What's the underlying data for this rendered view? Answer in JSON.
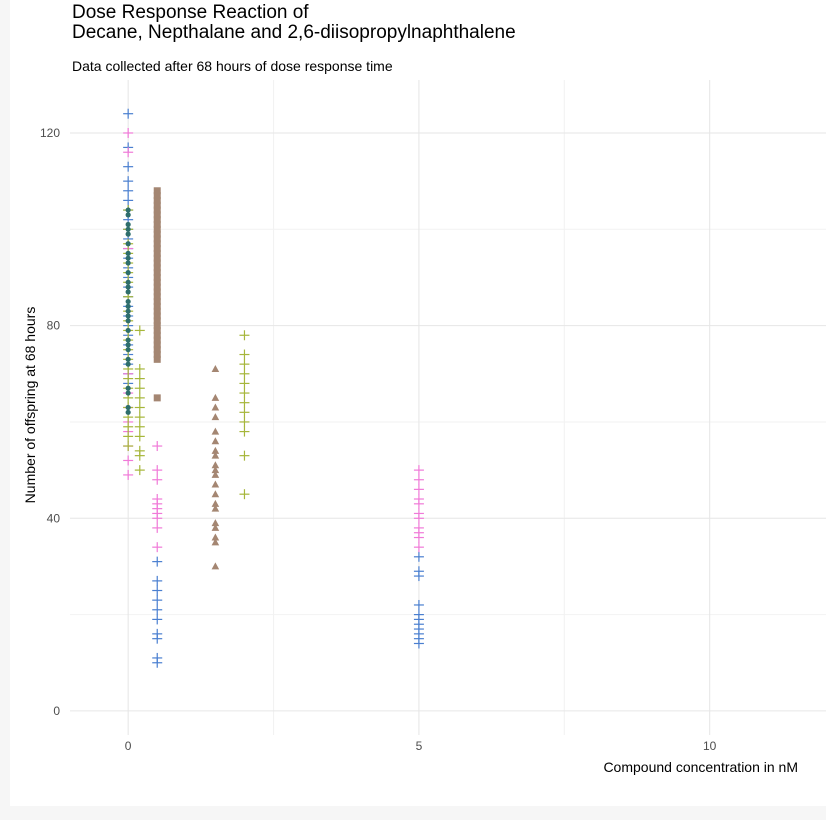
{
  "chart_data": {
    "type": "scatter",
    "title": "Dose Response Reaction of\nDecane, Nepthalane and 2,6-diisopropylnaphthalene",
    "subtitle": "Data collected after 68 hours of dose response time",
    "xlabel": "Compound concentration in nM",
    "ylabel": "Number of offspring at 68 hours",
    "xlim": [
      -1,
      12
    ],
    "ylim": [
      -5,
      131
    ],
    "x_ticks": [
      0,
      5,
      10
    ],
    "y_ticks": [
      0,
      40,
      80,
      120
    ],
    "grid": true,
    "series": [
      {
        "marker": "plus",
        "color": "#4a7fd0",
        "points": [
          [
            0,
            124
          ],
          [
            0,
            117
          ],
          [
            0,
            113
          ],
          [
            0,
            110
          ],
          [
            0,
            108
          ],
          [
            0,
            106
          ],
          [
            0,
            104
          ],
          [
            0,
            102
          ],
          [
            0,
            100
          ],
          [
            0,
            98
          ],
          [
            0,
            96
          ],
          [
            0,
            94
          ],
          [
            0,
            92
          ],
          [
            0,
            90
          ],
          [
            0,
            88
          ],
          [
            0,
            86
          ],
          [
            0,
            84
          ],
          [
            0,
            82
          ],
          [
            0,
            80
          ],
          [
            0,
            78
          ],
          [
            0,
            76
          ],
          [
            0,
            74
          ],
          [
            0,
            72
          ],
          [
            0,
            70
          ],
          [
            0,
            68
          ],
          [
            0.5,
            31
          ],
          [
            0.5,
            27
          ],
          [
            0.5,
            25
          ],
          [
            0.5,
            23
          ],
          [
            0.5,
            21
          ],
          [
            0.5,
            19
          ],
          [
            0.5,
            16
          ],
          [
            0.5,
            15
          ],
          [
            0.5,
            11
          ],
          [
            0.5,
            10
          ],
          [
            5,
            32
          ],
          [
            5,
            29
          ],
          [
            5,
            28
          ],
          [
            5,
            22
          ],
          [
            5,
            20
          ],
          [
            5,
            19
          ],
          [
            5,
            18
          ],
          [
            5,
            17
          ],
          [
            5,
            16
          ],
          [
            5,
            15
          ],
          [
            5,
            14
          ]
        ]
      },
      {
        "marker": "plus",
        "color": "#f07ad8",
        "points": [
          [
            0,
            120
          ],
          [
            0,
            116
          ],
          [
            0,
            96
          ],
          [
            0,
            70
          ],
          [
            0,
            66
          ],
          [
            0,
            63
          ],
          [
            0,
            60
          ],
          [
            0,
            58
          ],
          [
            0,
            55
          ],
          [
            0,
            52
          ],
          [
            0,
            49
          ],
          [
            0.5,
            55
          ],
          [
            0.5,
            50
          ],
          [
            0.5,
            48
          ],
          [
            0.5,
            44
          ],
          [
            0.5,
            43
          ],
          [
            0.5,
            42
          ],
          [
            0.5,
            41
          ],
          [
            0.5,
            40
          ],
          [
            0.5,
            38
          ],
          [
            0.5,
            34
          ],
          [
            5,
            50
          ],
          [
            5,
            48
          ],
          [
            5,
            46
          ],
          [
            5,
            44
          ],
          [
            5,
            43
          ],
          [
            5,
            41
          ],
          [
            5,
            40
          ],
          [
            5,
            38
          ],
          [
            5,
            37
          ],
          [
            5,
            36
          ],
          [
            5,
            34
          ]
        ]
      },
      {
        "marker": "plus",
        "color": "#a6b63a",
        "points": [
          [
            0,
            104
          ],
          [
            0,
            100
          ],
          [
            0,
            97
          ],
          [
            0,
            95
          ],
          [
            0,
            93
          ],
          [
            0,
            91
          ],
          [
            0,
            89
          ],
          [
            0,
            86
          ],
          [
            0,
            83
          ],
          [
            0,
            81
          ],
          [
            0,
            79
          ],
          [
            0,
            77
          ],
          [
            0,
            75
          ],
          [
            0,
            73
          ],
          [
            0,
            71
          ],
          [
            0,
            69
          ],
          [
            0,
            67
          ],
          [
            0,
            65
          ],
          [
            0,
            63
          ],
          [
            0,
            61
          ],
          [
            0,
            59
          ],
          [
            0,
            57
          ],
          [
            0,
            55
          ],
          [
            0.2,
            79
          ],
          [
            0.2,
            71
          ],
          [
            0.2,
            69
          ],
          [
            0.2,
            67
          ],
          [
            0.2,
            65
          ],
          [
            0.2,
            63
          ],
          [
            0.2,
            61
          ],
          [
            0.2,
            59
          ],
          [
            0.2,
            57
          ],
          [
            0.2,
            54
          ],
          [
            0.2,
            53
          ],
          [
            0.2,
            50
          ],
          [
            2,
            78
          ],
          [
            2,
            74
          ],
          [
            2,
            72
          ],
          [
            2,
            70
          ],
          [
            2,
            68
          ],
          [
            2,
            66
          ],
          [
            2,
            64
          ],
          [
            2,
            62
          ],
          [
            2,
            60
          ],
          [
            2,
            58
          ],
          [
            2,
            53
          ],
          [
            2,
            45
          ]
        ]
      },
      {
        "marker": "circle",
        "color": "#2e6e6c",
        "points": [
          [
            0,
            104
          ],
          [
            0,
            103
          ],
          [
            0,
            101
          ],
          [
            0,
            100
          ],
          [
            0,
            99
          ],
          [
            0,
            97
          ],
          [
            0,
            95
          ],
          [
            0,
            94
          ],
          [
            0,
            93
          ],
          [
            0,
            91
          ],
          [
            0,
            89
          ],
          [
            0,
            88
          ],
          [
            0,
            87
          ],
          [
            0,
            85
          ],
          [
            0,
            84
          ],
          [
            0,
            83
          ],
          [
            0,
            82
          ],
          [
            0,
            81
          ],
          [
            0,
            79
          ],
          [
            0,
            77
          ],
          [
            0,
            76
          ],
          [
            0,
            75
          ],
          [
            0,
            73
          ],
          [
            0,
            72
          ],
          [
            0,
            67
          ],
          [
            0,
            66
          ],
          [
            0,
            63
          ],
          [
            0,
            62
          ]
        ]
      },
      {
        "marker": "square",
        "color": "#a48672",
        "points": [
          [
            0.5,
            108
          ],
          [
            0.5,
            107
          ],
          [
            0.5,
            106
          ],
          [
            0.5,
            105
          ],
          [
            0.5,
            104
          ],
          [
            0.5,
            103
          ],
          [
            0.5,
            102
          ],
          [
            0.5,
            101
          ],
          [
            0.5,
            100
          ],
          [
            0.5,
            99
          ],
          [
            0.5,
            98
          ],
          [
            0.5,
            97
          ],
          [
            0.5,
            96
          ],
          [
            0.5,
            95
          ],
          [
            0.5,
            94
          ],
          [
            0.5,
            93
          ],
          [
            0.5,
            92
          ],
          [
            0.5,
            91
          ],
          [
            0.5,
            90
          ],
          [
            0.5,
            89
          ],
          [
            0.5,
            88
          ],
          [
            0.5,
            87
          ],
          [
            0.5,
            86
          ],
          [
            0.5,
            85
          ],
          [
            0.5,
            84
          ],
          [
            0.5,
            83
          ],
          [
            0.5,
            82
          ],
          [
            0.5,
            81
          ],
          [
            0.5,
            80
          ],
          [
            0.5,
            79
          ],
          [
            0.5,
            78
          ],
          [
            0.5,
            77
          ],
          [
            0.5,
            76
          ],
          [
            0.5,
            75
          ],
          [
            0.5,
            74
          ],
          [
            0.5,
            73
          ],
          [
            0.5,
            65
          ]
        ]
      },
      {
        "marker": "triangle",
        "color": "#a48672",
        "points": [
          [
            1.5,
            71
          ],
          [
            1.5,
            65
          ],
          [
            1.5,
            63
          ],
          [
            1.5,
            61
          ],
          [
            1.5,
            58
          ],
          [
            1.5,
            56
          ],
          [
            1.5,
            54
          ],
          [
            1.5,
            53
          ],
          [
            1.5,
            51
          ],
          [
            1.5,
            50
          ],
          [
            1.5,
            49
          ],
          [
            1.5,
            47
          ],
          [
            1.5,
            45
          ],
          [
            1.5,
            43
          ],
          [
            1.5,
            42
          ],
          [
            1.5,
            39
          ],
          [
            1.5,
            38
          ],
          [
            1.5,
            36
          ],
          [
            1.5,
            35
          ],
          [
            1.5,
            30
          ]
        ]
      }
    ]
  }
}
